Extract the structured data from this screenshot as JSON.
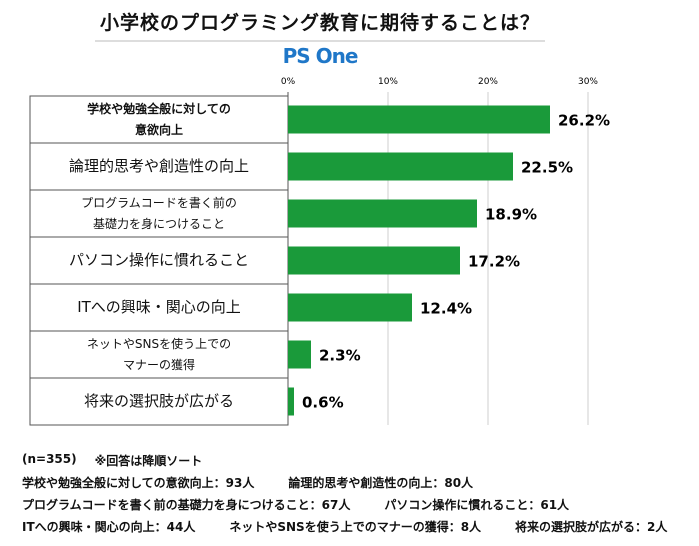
{
  "chart_data": {
    "type": "bar",
    "orientation": "horizontal",
    "title": "小学校のプログラミング教育に期待することは？",
    "brand": "PS One",
    "categories": [
      "学校や勉強全般に対しての\n意欲向上",
      "論理的思考や創造性の向上",
      "プログラムコードを書く前の\n基礎力を身につけること",
      "パソコン操作に慣れること",
      "ITへの興味・関心の向上",
      "ネットやSNSを使う上での\nマナーの獲得",
      "将来の選択肢が広がる"
    ],
    "values": [
      26.2,
      22.5,
      18.9,
      17.2,
      12.4,
      2.3,
      0.6
    ],
    "value_labels": [
      "26.2%",
      "22.5%",
      "18.9%",
      "17.2%",
      "12.4%",
      "2.3%",
      "0.6%"
    ],
    "color": "#1a9a3a",
    "xlim": [
      0,
      30
    ],
    "xticks": [
      {
        "value": 0,
        "label": "0%"
      },
      {
        "value": 10,
        "label": "10%"
      },
      {
        "value": 20,
        "label": "20%"
      },
      {
        "value": 30,
        "label": "30%"
      }
    ],
    "grid": true,
    "sample_note": "(n=355)",
    "sort_note": "※回答は降順ソート",
    "counts": [
      [
        "学校や勉強全般に対しての意欲向上：93人",
        "論理的思考や創造性の向上：80人"
      ],
      [
        "プログラムコードを書く前の基礎力を身につけること：67人",
        "パソコン操作に慣れること：61人"
      ],
      [
        "ITへの興味・関心の向上：44人",
        "ネットやSNSを使う上でのマナーの獲得：8人",
        "将来の選択肢が広がる：2人"
      ]
    ]
  }
}
